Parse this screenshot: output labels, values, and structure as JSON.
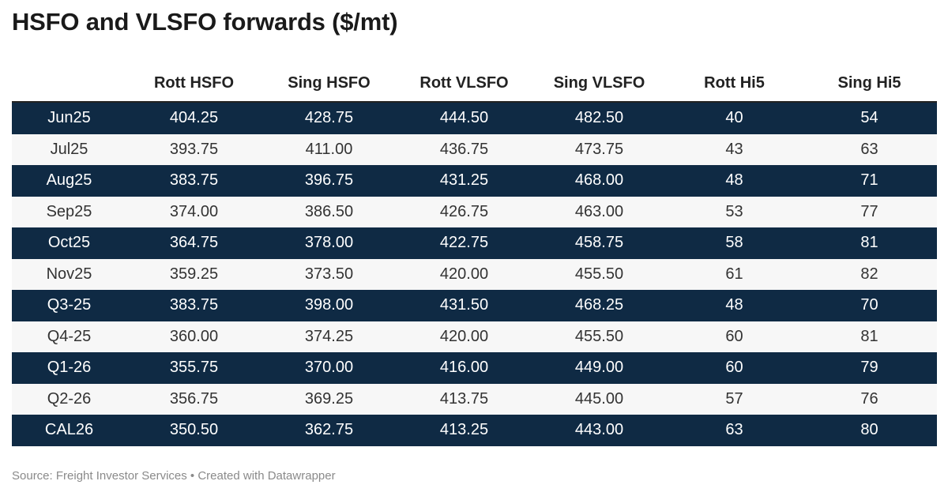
{
  "header": {
    "title": "HSFO and VLSFO forwards ($/mt)"
  },
  "footer": {
    "source": "Source: Freight Investor Services • Created with Datawrapper"
  },
  "colors": {
    "dark_row": "#0f2a44",
    "light_row": "#f7f7f7"
  },
  "chart_data": {
    "type": "table",
    "title": "HSFO and VLSFO forwards ($/mt)",
    "columns": [
      "",
      "Rott HSFO",
      "Sing HSFO",
      "Rott VLSFO",
      "Sing VLSFO",
      "Rott Hi5",
      "Sing Hi5"
    ],
    "rows": [
      [
        "Jun25",
        "404.25",
        "428.75",
        "444.50",
        "482.50",
        "40",
        "54"
      ],
      [
        "Jul25",
        "393.75",
        "411.00",
        "436.75",
        "473.75",
        "43",
        "63"
      ],
      [
        "Aug25",
        "383.75",
        "396.75",
        "431.25",
        "468.00",
        "48",
        "71"
      ],
      [
        "Sep25",
        "374.00",
        "386.50",
        "426.75",
        "463.00",
        "53",
        "77"
      ],
      [
        "Oct25",
        "364.75",
        "378.00",
        "422.75",
        "458.75",
        "58",
        "81"
      ],
      [
        "Nov25",
        "359.25",
        "373.50",
        "420.00",
        "455.50",
        "61",
        "82"
      ],
      [
        "Q3-25",
        "383.75",
        "398.00",
        "431.50",
        "468.25",
        "48",
        "70"
      ],
      [
        "Q4-25",
        "360.00",
        "374.25",
        "420.00",
        "455.50",
        "60",
        "81"
      ],
      [
        "Q1-26",
        "355.75",
        "370.00",
        "416.00",
        "449.00",
        "60",
        "79"
      ],
      [
        "Q2-26",
        "356.75",
        "369.25",
        "413.75",
        "445.00",
        "57",
        "76"
      ],
      [
        "CAL26",
        "350.50",
        "362.75",
        "413.25",
        "443.00",
        "63",
        "80"
      ]
    ]
  }
}
